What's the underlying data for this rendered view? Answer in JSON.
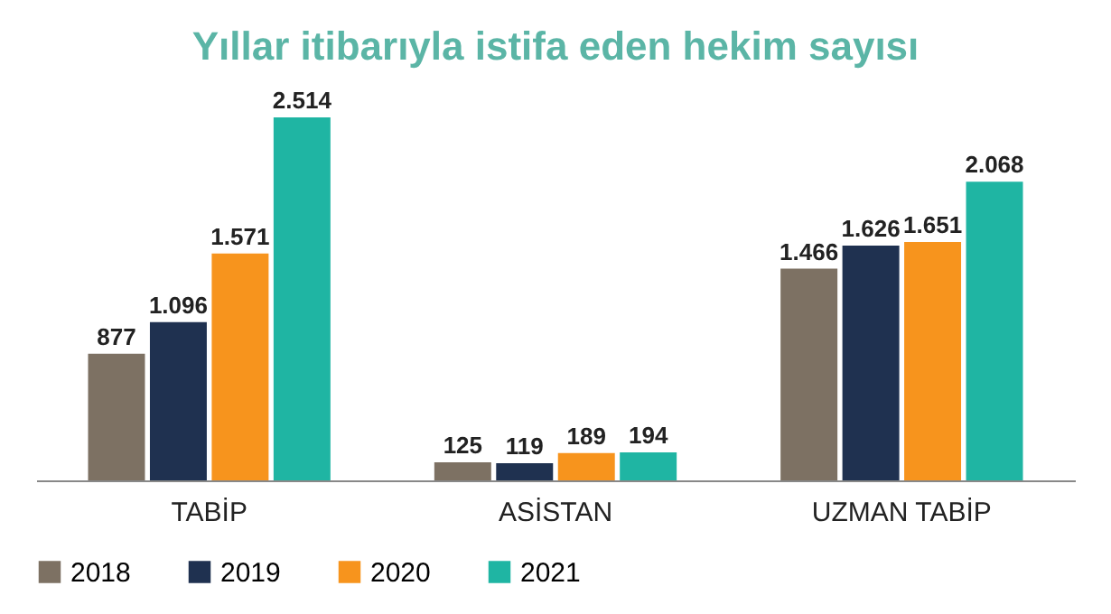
{
  "chart_data": {
    "type": "bar",
    "title": "Yıllar itibarıyla istifa eden hekim sayısı",
    "categories": [
      "TABİP",
      "ASİSTAN",
      "UZMAN TABİP"
    ],
    "series": [
      {
        "name": "2018",
        "color": "#7d7163",
        "values": [
          877,
          125,
          1466
        ],
        "value_labels": [
          "877",
          "125",
          "1.466"
        ]
      },
      {
        "name": "2019",
        "color": "#1f3150",
        "values": [
          1096,
          119,
          1626
        ],
        "value_labels": [
          "1.096",
          "119",
          "1.626"
        ]
      },
      {
        "name": "2020",
        "color": "#f7941d",
        "values": [
          1571,
          189,
          1651
        ],
        "value_labels": [
          "1.571",
          "189",
          "1.651"
        ]
      },
      {
        "name": "2021",
        "color": "#1fb5a3",
        "values": [
          2514,
          194,
          2068
        ],
        "value_labels": [
          "2.514",
          "194",
          "2.068"
        ]
      }
    ],
    "legend": "bottom",
    "grid": false
  }
}
